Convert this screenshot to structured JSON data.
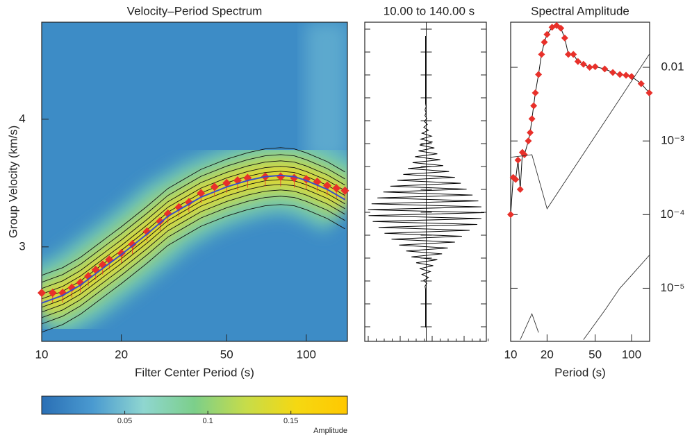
{
  "chart_data": [
    {
      "type": "dispersion",
      "title": "Velocity–Period Spectrum",
      "xlabel": "Filter Center Period (s)",
      "ylabel": "Group Velocity (km/s)",
      "xscale": "log",
      "xlim": [
        10,
        143
      ],
      "ylim": [
        2.26,
        4.76
      ],
      "xticks": [
        10,
        20,
        50,
        100
      ],
      "yticks": [
        3,
        4
      ],
      "series": [
        {
          "color": "#e8302a",
          "marker": "diamond",
          "x": [
            10,
            11,
            12,
            13,
            14,
            15,
            16,
            17,
            18,
            20,
            22,
            25,
            28,
            30,
            33,
            36,
            40,
            45,
            50,
            55,
            60,
            70,
            80,
            90,
            100,
            110,
            120,
            130,
            140
          ],
          "values": [
            2.64,
            2.64,
            2.64,
            2.68,
            2.72,
            2.77,
            2.82,
            2.86,
            2.9,
            2.95,
            3.02,
            3.12,
            3.2,
            3.26,
            3.31,
            3.35,
            3.42,
            3.47,
            3.5,
            3.52,
            3.54,
            3.55,
            3.55,
            3.54,
            3.53,
            3.51,
            3.48,
            3.46,
            3.44
          ]
        },
        {
          "color": "#3a4fc4",
          "x": [
            10,
            12,
            14,
            16,
            18,
            20,
            25,
            30,
            40,
            50,
            60,
            70,
            80,
            90,
            100,
            120,
            140
          ],
          "values": [
            2.56,
            2.62,
            2.7,
            2.79,
            2.87,
            2.94,
            3.1,
            3.24,
            3.39,
            3.47,
            3.52,
            3.55,
            3.56,
            3.55,
            3.52,
            3.45,
            3.37
          ]
        }
      ]
    },
    {
      "type": "trace",
      "title": "10.00 to  140.00 s",
      "xlim": [
        -1,
        1
      ],
      "color": "#000000",
      "values": [
        0,
        0,
        0,
        0,
        0,
        0,
        0,
        0,
        0,
        0,
        0,
        0,
        0,
        0,
        0,
        0,
        0,
        0,
        0,
        0,
        0,
        0,
        0,
        0,
        0.01,
        -0.01,
        0.01,
        -0.01,
        0.02,
        -0.02,
        0.03,
        -0.03,
        0.05,
        -0.06,
        0.1,
        -0.08,
        0.12,
        -0.1,
        0.15,
        -0.12,
        0.2,
        -0.18,
        0.25,
        -0.22,
        0.3,
        -0.3,
        0.4,
        -0.38,
        0.5,
        -0.48,
        0.6,
        -0.6,
        0.7,
        -0.72,
        0.8,
        -0.82,
        0.9,
        -0.92,
        0.95,
        -0.98,
        1,
        -0.97,
        0.95,
        -0.9,
        0.88,
        -0.8,
        0.75,
        -0.7,
        0.62,
        -0.58,
        0.5,
        -0.45,
        0.38,
        -0.33,
        0.28,
        -0.24,
        0.2,
        -0.16,
        0.13,
        -0.1,
        0.08,
        -0.06,
        0.05,
        -0.03,
        0.02,
        -0.01,
        0,
        0,
        0,
        0,
        0,
        0,
        0,
        0,
        0,
        0,
        0,
        0,
        0,
        0
      ]
    },
    {
      "type": "spectrum",
      "title": "Spectral Amplitude",
      "xlabel": "Period (s)",
      "xscale": "log",
      "yscale": "log",
      "xlim": [
        10,
        141
      ],
      "ylim": [
        1.9e-06,
        0.041
      ],
      "xticks": [
        10,
        20,
        50,
        100
      ],
      "yticks": [
        {
          "value": 0.01,
          "label": "0.01"
        },
        {
          "value": 0.001,
          "label": "10⁻³"
        },
        {
          "value": 0.0001,
          "label": "10⁻⁴"
        },
        {
          "value": 1e-05,
          "label": "10⁻⁵"
        }
      ],
      "series": [
        {
          "color": "#e8302a",
          "marker": "diamond",
          "x": [
            10,
            10.5,
            11,
            11.5,
            12,
            12.5,
            13,
            14,
            14.5,
            15,
            15.5,
            16,
            17,
            18,
            19,
            20,
            22,
            24,
            26,
            28,
            30,
            33,
            36,
            40,
            45,
            50,
            60,
            70,
            80,
            90,
            100,
            120,
            140
          ],
          "values": [
            0.0001,
            0.00032,
            0.0003,
            0.00055,
            0.00022,
            0.0007,
            0.00065,
            0.001,
            0.0013,
            0.002,
            0.003,
            0.0045,
            0.008,
            0.015,
            0.022,
            0.028,
            0.035,
            0.037,
            0.034,
            0.025,
            0.015,
            0.015,
            0.012,
            0.011,
            0.01,
            0.0102,
            0.0095,
            0.0085,
            0.008,
            0.0078,
            0.0075,
            0.006,
            0.0045
          ]
        },
        {
          "color": "#333333",
          "x": [
            10,
            15,
            20,
            140
          ],
          "values": [
            0.0006,
            0.00065,
            0.00012,
            0.015
          ]
        },
        {
          "color": "#333333",
          "x": [
            10,
            12,
            15,
            17,
            20,
            40,
            60,
            80,
            100,
            140
          ],
          "values": [
            null,
            2e-06,
            4.5e-06,
            2.5e-06,
            null,
            2e-06,
            5e-06,
            1e-05,
            1.5e-05,
            2.8e-05
          ]
        }
      ]
    },
    {
      "type": "colorbar",
      "label": "Amplitude",
      "xlim": [
        0,
        0.184
      ],
      "xticks": [
        0.05,
        0.1,
        0.15
      ],
      "colors": [
        "#2a6fb5",
        "#4a9ad0",
        "#8fd6d0",
        "#7ccf8a",
        "#c6dc4a",
        "#f5d812",
        "#ffc800"
      ]
    }
  ]
}
